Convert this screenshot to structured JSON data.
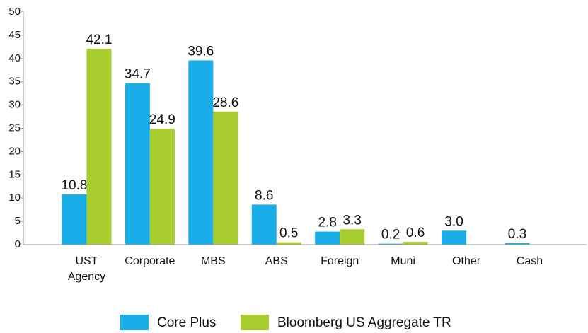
{
  "chart_data": {
    "type": "bar",
    "categories": [
      "UST Agency",
      "Corporate",
      "MBS",
      "ABS",
      "Foreign",
      "Muni",
      "Other",
      "Cash"
    ],
    "series": [
      {
        "name": "Core Plus",
        "color": "#1aaee8",
        "values": [
          10.8,
          34.7,
          39.6,
          8.6,
          2.8,
          0.2,
          3.0,
          0.3
        ],
        "value_labels": [
          "10.8",
          "34.7",
          "39.6",
          "8.6",
          "2.8",
          "0.2",
          "3.0",
          "0.3"
        ]
      },
      {
        "name": "Bloomberg US Aggregate TR",
        "color": "#a8cd2f",
        "values": [
          42.1,
          24.9,
          28.6,
          0.5,
          3.3,
          0.6,
          null,
          null
        ],
        "value_labels": [
          "42.1",
          "24.9",
          "28.6",
          "0.5",
          "3.3",
          "0.6",
          null,
          null
        ]
      }
    ],
    "ylim": [
      0,
      50
    ],
    "yticks": [
      0,
      5,
      10,
      15,
      20,
      25,
      30,
      35,
      40,
      45,
      50
    ],
    "grid": false,
    "legend": "bottom"
  }
}
